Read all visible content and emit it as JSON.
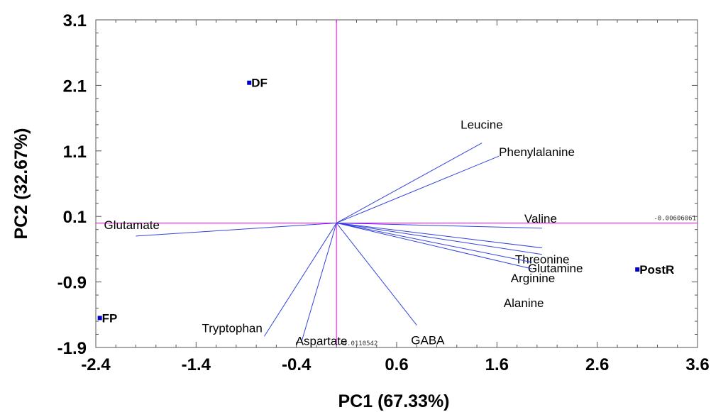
{
  "chart_data": {
    "type": "scatter",
    "subtype": "biplot",
    "xlabel": "PC1 (67.33%)",
    "ylabel": "PC2 (32.67%)",
    "xlim": [
      -2.4,
      3.6
    ],
    "ylim": [
      -1.9,
      3.1
    ],
    "xticks": [
      "-2.4",
      "-1.4",
      "-0.4",
      "0.6",
      "1.6",
      "2.6",
      "3.6"
    ],
    "yticks": [
      "3.1",
      "2.1",
      "1.1",
      "0.1",
      "-0.9",
      "-1.9"
    ],
    "grid": false,
    "reference_lines": {
      "horizontal_y": 0.0,
      "vertical_x": 0.0,
      "horizontal_label": "-0.00606061",
      "vertical_label": "-0.0110542",
      "color": "#ff00ff"
    },
    "vector_color": "#3344dd",
    "point_color": "#0000cc",
    "origin": [
      0.0,
      0.0
    ],
    "points": [
      {
        "label": "DF",
        "x": -0.87,
        "y": 2.14
      },
      {
        "label": "FP",
        "x": -2.36,
        "y": -1.45
      },
      {
        "label": "PostR",
        "x": 3.0,
        "y": -0.71
      }
    ],
    "vectors": [
      {
        "label": "Leucine",
        "x": 1.45,
        "y": 1.22
      },
      {
        "label": "Phenylalanine",
        "x": 1.62,
        "y": 1.02
      },
      {
        "label": "Valine",
        "x": 2.05,
        "y": -0.08
      },
      {
        "label": "Threonine",
        "x": 2.05,
        "y": -0.38
      },
      {
        "label": "Glutamine",
        "x": 2.05,
        "y": -0.48
      },
      {
        "label": "Arginine",
        "x": 1.95,
        "y": -0.6
      },
      {
        "label": "Alanine",
        "x": 1.95,
        "y": -0.7
      },
      {
        "label": "GABA",
        "x": 0.8,
        "y": -1.56
      },
      {
        "label": "Aspartate",
        "x": -0.35,
        "y": -1.82
      },
      {
        "label": "Tryptophan",
        "x": -0.72,
        "y": -1.73
      },
      {
        "label": "Glutamate",
        "x": -2.0,
        "y": -0.2
      }
    ]
  }
}
